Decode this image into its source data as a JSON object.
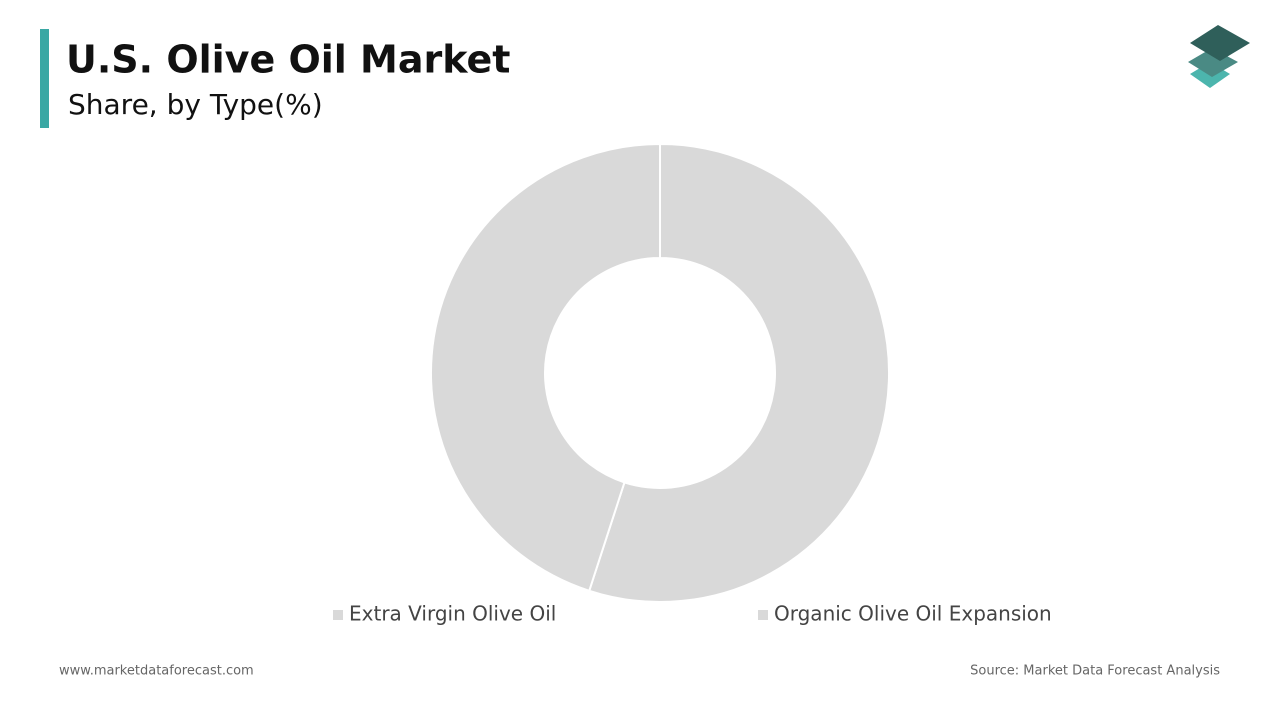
{
  "chart_data": {
    "type": "pie",
    "title": "U.S. Olive Oil Market",
    "subtitle": "Share, by Type(%)",
    "categories": [
      "Extra Virgin Olive Oil",
      "Organic Olive Oil Expansion"
    ],
    "values": [
      55,
      45
    ],
    "colors": [
      "#d9d9d9",
      "#d9d9d9"
    ],
    "legend": "bottom"
  },
  "footer": {
    "website": "www.marketdataforecast.com",
    "source": "Source: Market Data Forecast Analysis"
  }
}
